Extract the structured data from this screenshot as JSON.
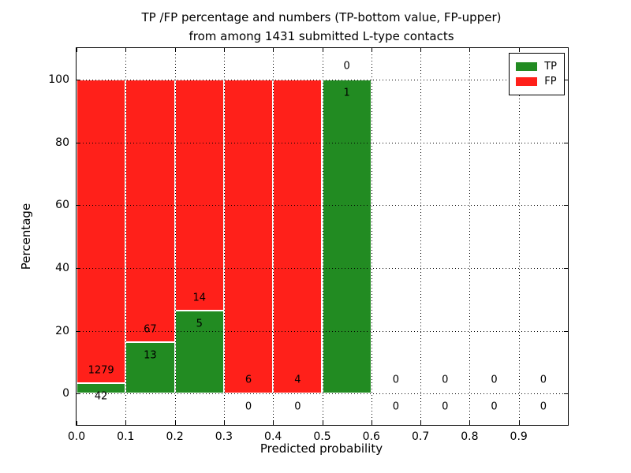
{
  "chart_data": {
    "type": "bar",
    "stacked": true,
    "title_line1": "TP /FP percentage and numbers (TP-bottom value, FP-upper)",
    "title_line2": "from among 1431 submitted L-type contacts",
    "xlabel": "Predicted probability",
    "ylabel": "Percentage",
    "total_submitted_contacts": 1431,
    "xlim": [
      0.0,
      1.0
    ],
    "ylim": [
      -10,
      110
    ],
    "grid": true,
    "yticks": [
      0,
      20,
      40,
      60,
      80,
      100
    ],
    "ytick_labels": [
      "0",
      "20",
      "40",
      "60",
      "80",
      "100"
    ],
    "xticks": [
      0.0,
      0.1,
      0.2,
      0.3,
      0.4,
      0.5,
      0.6,
      0.7,
      0.8,
      0.9
    ],
    "xtick_labels": [
      "0.0",
      "0.1",
      "0.2",
      "0.3",
      "0.4",
      "0.5",
      "0.6",
      "0.7",
      "0.8",
      "0.9"
    ],
    "legend_position": "upper-right",
    "legend": [
      {
        "label": "TP",
        "color": "#228b22"
      },
      {
        "label": "FP",
        "color": "#ff201a"
      }
    ],
    "colors": {
      "tp": "#228b22",
      "fp": "#ff201a",
      "grid": "#000000",
      "background": "#ffffff",
      "bar_edge": "#ffffff"
    },
    "bins": [
      {
        "x0": 0.0,
        "x1": 0.1,
        "tp": 42,
        "fp": 1279,
        "tp_pct": 3.2,
        "bar_top_pct": 100,
        "fp_label": "1279",
        "tp_label": "42"
      },
      {
        "x0": 0.1,
        "x1": 0.2,
        "tp": 13,
        "fp": 67,
        "tp_pct": 16.3,
        "bar_top_pct": 100,
        "fp_label": "67",
        "tp_label": "13"
      },
      {
        "x0": 0.2,
        "x1": 0.3,
        "tp": 5,
        "fp": 14,
        "tp_pct": 26.3,
        "bar_top_pct": 100,
        "fp_label": "14",
        "tp_label": "5"
      },
      {
        "x0": 0.3,
        "x1": 0.4,
        "tp": 0,
        "fp": 6,
        "tp_pct": 0,
        "bar_top_pct": 100,
        "fp_label": "6",
        "tp_label": "0"
      },
      {
        "x0": 0.4,
        "x1": 0.5,
        "tp": 0,
        "fp": 4,
        "tp_pct": 0,
        "bar_top_pct": 100,
        "fp_label": "4",
        "tp_label": "0"
      },
      {
        "x0": 0.5,
        "x1": 0.6,
        "tp": 1,
        "fp": 0,
        "tp_pct": 100,
        "bar_top_pct": 100,
        "fp_label": "0",
        "tp_label": "1"
      },
      {
        "x0": 0.6,
        "x1": 0.7,
        "tp": 0,
        "fp": 0,
        "tp_pct": 0,
        "bar_top_pct": 0,
        "fp_label": "0",
        "tp_label": "0"
      },
      {
        "x0": 0.7,
        "x1": 0.8,
        "tp": 0,
        "fp": 0,
        "tp_pct": 0,
        "bar_top_pct": 0,
        "fp_label": "0",
        "tp_label": "0"
      },
      {
        "x0": 0.8,
        "x1": 0.9,
        "tp": 0,
        "fp": 0,
        "tp_pct": 0,
        "bar_top_pct": 0,
        "fp_label": "0",
        "tp_label": "0"
      },
      {
        "x0": 0.9,
        "x1": 1.0,
        "tp": 0,
        "fp": 0,
        "tp_pct": 0,
        "bar_top_pct": 0,
        "fp_label": "0",
        "tp_label": "0"
      }
    ],
    "annotation_offsets": {
      "fp_label_pct_above_bar": 4.2,
      "tp_label_pct_below_bar": 4.2
    }
  }
}
